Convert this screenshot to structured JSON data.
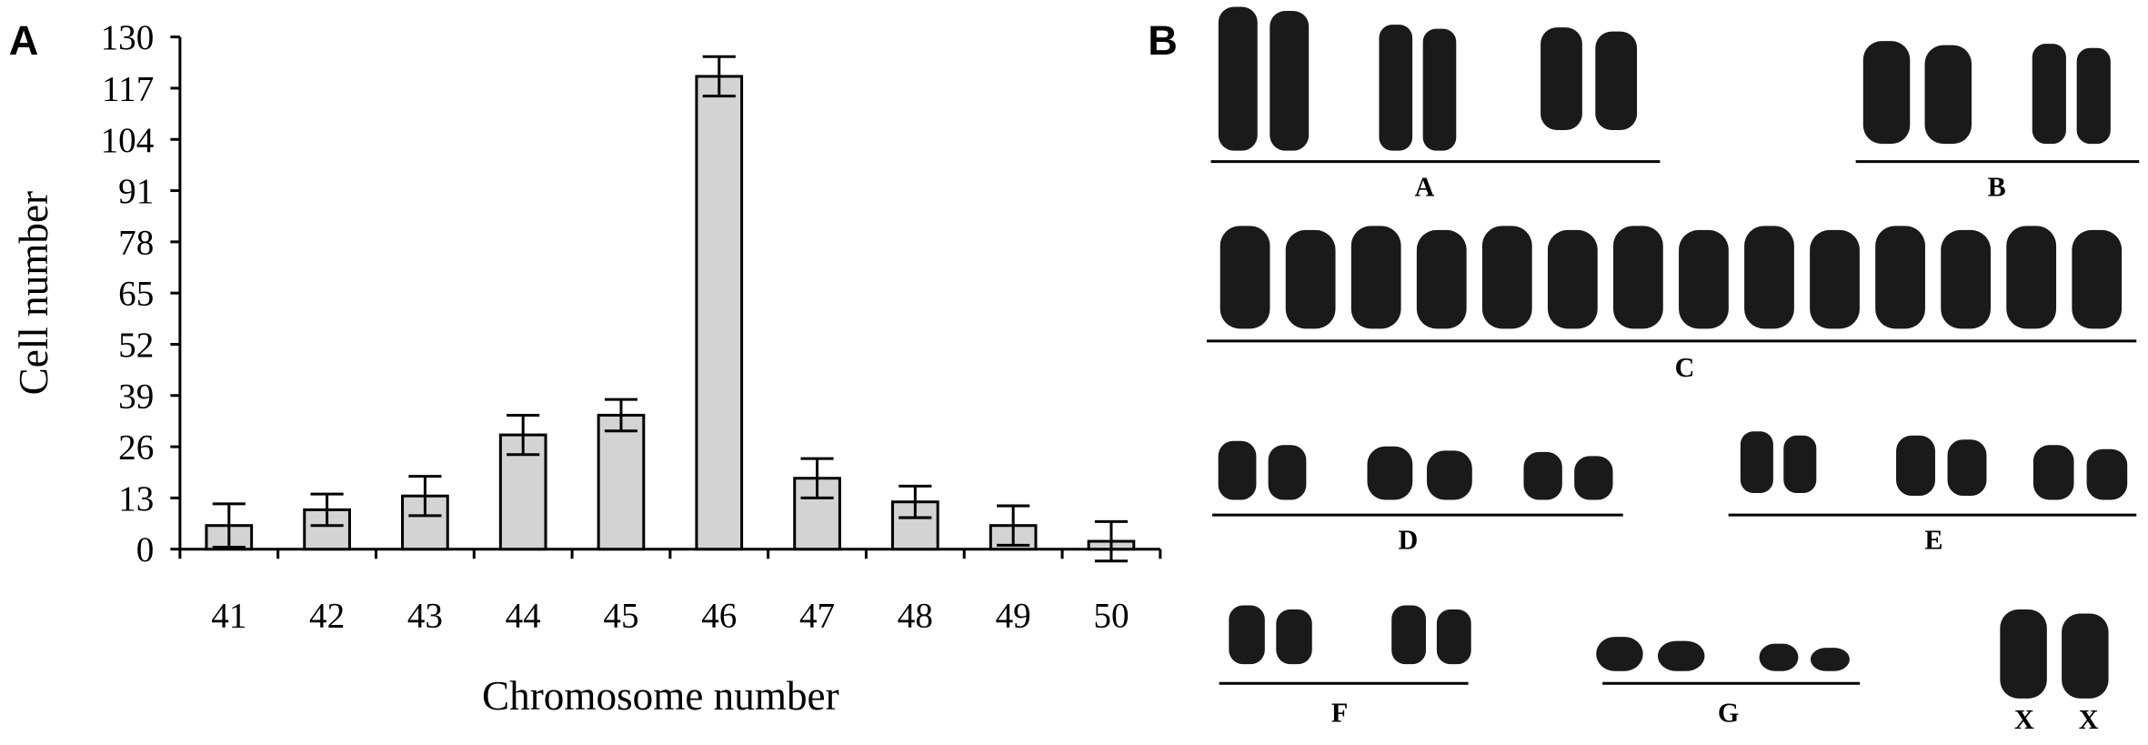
{
  "panel_labels": [
    "A",
    "B"
  ],
  "chart_data": {
    "type": "bar",
    "x_label": "Chromosome number",
    "y_label": "Cell number",
    "categories": [
      "41",
      "42",
      "43",
      "44",
      "45",
      "46",
      "47",
      "48",
      "49",
      "50"
    ],
    "values": [
      6,
      10,
      13.5,
      29,
      34,
      120,
      18,
      12,
      6,
      2
    ],
    "errors": [
      5.5,
      4,
      5,
      5,
      4,
      5,
      5,
      4,
      5,
      5
    ],
    "color": "#d3d3d3",
    "ylim": [
      0,
      130
    ],
    "yticks": [
      0,
      13,
      26,
      39,
      52,
      65,
      78,
      91,
      104,
      117,
      130
    ],
    "grid": false
  },
  "karyotype": {
    "groups": [
      "A",
      "B",
      "C",
      "D",
      "E",
      "F",
      "G"
    ],
    "sex": [
      "X",
      "X"
    ]
  }
}
